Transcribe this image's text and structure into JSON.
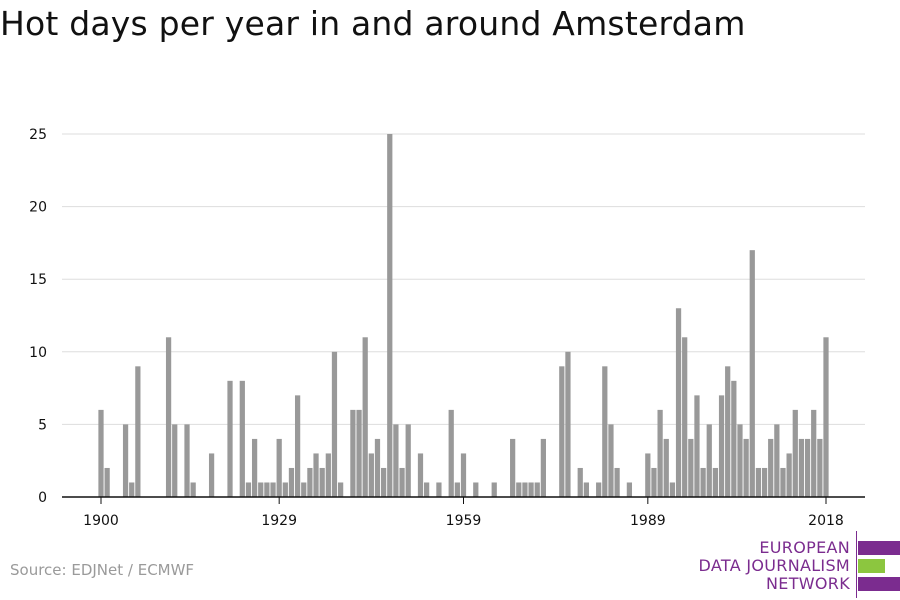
{
  "title": "Hot days per year in and around Amsterdam",
  "source": "Source: EDJNet / ECMWF",
  "logo": {
    "lines": [
      "EUROPEAN",
      "DATA JOURNALISM",
      "NETWORK"
    ],
    "colors": {
      "purple": "#7b2c8f",
      "green": "#8cc63f"
    }
  },
  "chart_data": {
    "type": "bar",
    "title": "Hot days per year in and around Amsterdam",
    "xlabel": "",
    "ylabel": "",
    "xlim": [
      1894,
      2024
    ],
    "ylim": [
      0,
      25
    ],
    "y_ticks": [
      0,
      5,
      10,
      15,
      20,
      25
    ],
    "x_ticks": [
      1900,
      1929,
      1959,
      1989,
      2018
    ],
    "grid": true,
    "bar_color": "#999999",
    "x": [
      1900,
      1901,
      1902,
      1903,
      1904,
      1905,
      1906,
      1907,
      1908,
      1909,
      1910,
      1911,
      1912,
      1913,
      1914,
      1915,
      1916,
      1917,
      1918,
      1919,
      1920,
      1921,
      1922,
      1923,
      1924,
      1925,
      1926,
      1927,
      1928,
      1929,
      1930,
      1931,
      1932,
      1933,
      1934,
      1935,
      1936,
      1937,
      1938,
      1939,
      1940,
      1941,
      1942,
      1943,
      1944,
      1945,
      1946,
      1947,
      1948,
      1949,
      1950,
      1951,
      1952,
      1953,
      1954,
      1955,
      1956,
      1957,
      1958,
      1959,
      1960,
      1961,
      1962,
      1963,
      1964,
      1965,
      1966,
      1967,
      1968,
      1969,
      1970,
      1971,
      1972,
      1973,
      1974,
      1975,
      1976,
      1977,
      1978,
      1979,
      1980,
      1981,
      1982,
      1983,
      1984,
      1985,
      1986,
      1987,
      1988,
      1989,
      1990,
      1991,
      1992,
      1993,
      1994,
      1995,
      1996,
      1997,
      1998,
      1999,
      2000,
      2001,
      2002,
      2003,
      2004,
      2005,
      2006,
      2007,
      2008,
      2009,
      2010,
      2011,
      2012,
      2013,
      2014,
      2015,
      2016,
      2017,
      2018
    ],
    "values": [
      6,
      2,
      0,
      0,
      5,
      1,
      9,
      0,
      0,
      0,
      0,
      11,
      5,
      0,
      5,
      1,
      0,
      0,
      3,
      0,
      0,
      8,
      0,
      8,
      1,
      4,
      1,
      1,
      1,
      4,
      1,
      2,
      7,
      1,
      2,
      3,
      2,
      3,
      10,
      1,
      0,
      6,
      6,
      11,
      3,
      4,
      2,
      25,
      5,
      2,
      5,
      0,
      3,
      1,
      0,
      1,
      0,
      6,
      1,
      3,
      0,
      1,
      0,
      0,
      1,
      0,
      0,
      4,
      1,
      1,
      1,
      1,
      4,
      0,
      0,
      9,
      10,
      0,
      2,
      1,
      0,
      1,
      9,
      5,
      2,
      0,
      1,
      0,
      0,
      3,
      2,
      6,
      4,
      1,
      13,
      11,
      4,
      7,
      2,
      5,
      2,
      7,
      9,
      8,
      5,
      4,
      17,
      2,
      2,
      4,
      5,
      2,
      3,
      6,
      4,
      4,
      6,
      4,
      11
    ]
  }
}
